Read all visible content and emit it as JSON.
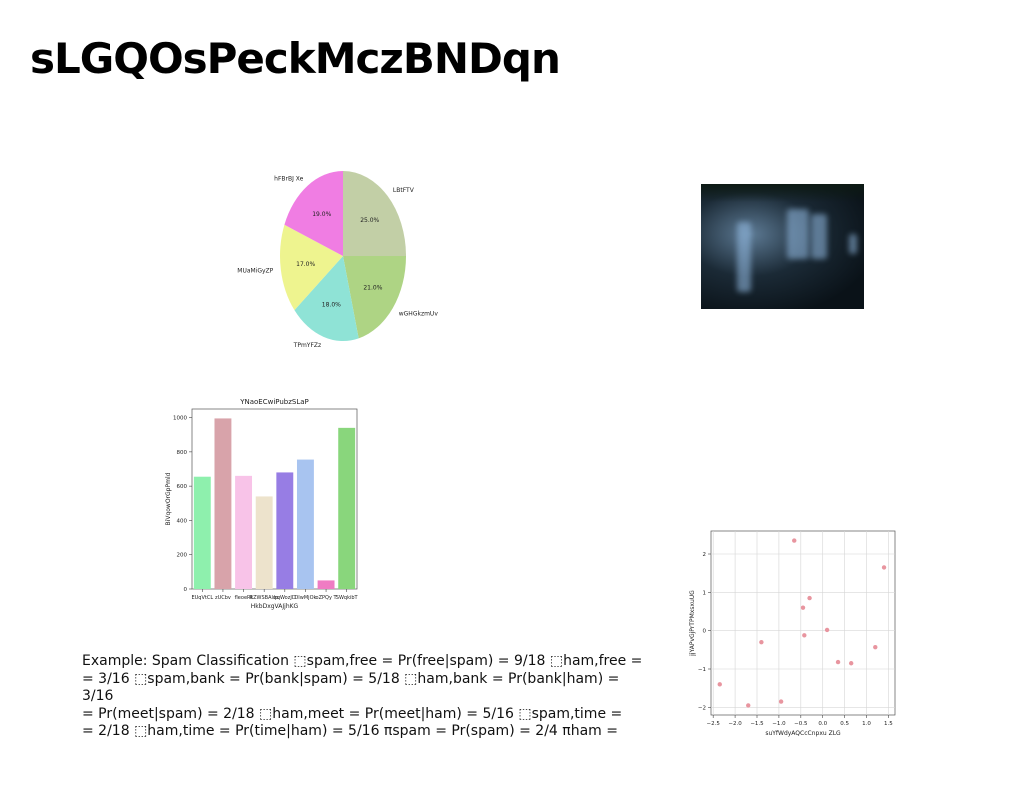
{
  "slide": {
    "title": "sLGQOsPeckMczBNDqn",
    "body_text": "Example: Spam Classification ⬚spam,free = Pr(free|spam) = 9/18 ⬚ham,free =\n= 3/16 ⬚spam,bank = Pr(bank|spam) = 5/18 ⬚ham,bank = Pr(bank|ham) = 3/16\n= Pr(meet|spam) = 2/18 ⬚ham,meet = Pr(meet|ham) = 5/16 ⬚spam,time =\n= 2/18 ⬚ham,time = Pr(time|ham) = 5/16 πspam = Pr(spam) = 2/4 πham ="
  },
  "chart_data": [
    {
      "type": "pie",
      "title": "",
      "slices": [
        {
          "label": "LBtFTV",
          "value": 25.0,
          "color": "#c2cfa6"
        },
        {
          "label": "wGHGkzmUv",
          "value": 21.0,
          "color": "#aed484"
        },
        {
          "label": "TPmYFZz",
          "value": 18.0,
          "color": "#8fe3d6"
        },
        {
          "label": "MUaMiGyZP",
          "value": 17.0,
          "color": "#eef48f"
        },
        {
          "label": "hFBrBJ Xe",
          "value": 19.0,
          "color": "#f07de3"
        }
      ]
    },
    {
      "type": "bar",
      "title": "YNaoECwiPubzSLaP",
      "xlabel": "HkbDxgVAJjhKG",
      "ylabel": "BiVqowOrGpPmld",
      "categories": [
        "EUqVtCL",
        "zUCbv",
        "fleoeRt",
        "RZWSBAlqs",
        "kqWozJD",
        "DIwMjOk",
        "oZPQy T",
        "SWqkibT"
      ],
      "values": [
        655,
        995,
        660,
        540,
        680,
        755,
        50,
        940
      ],
      "colors": [
        "#8ef0ad",
        "#d8a3aa",
        "#f8c3e8",
        "#ede3cc",
        "#977de4",
        "#a8c4f0",
        "#ef7cc3",
        "#89d67c"
      ],
      "ylim": [
        0,
        1050
      ],
      "yticks": [
        0,
        200,
        400,
        600,
        800,
        1000
      ]
    },
    {
      "type": "scatter",
      "title": "",
      "xlabel": "suYfWdyAQCcCnpxu ZLG",
      "ylabel": "jjYAPvGjPrTPMxsxuUG",
      "point_color": "#e8959f",
      "xlim": [
        -2.55,
        1.65
      ],
      "ylim": [
        -2.2,
        2.6
      ],
      "xticks": [
        -2.5,
        -2.0,
        -1.5,
        -1.0,
        -0.5,
        0.0,
        0.5,
        1.0,
        1.5
      ],
      "xtick_labels": [
        "−2.5",
        "−2.0",
        "−1.5",
        "−1.0",
        "−0.5",
        "0.0",
        "0.5",
        "1.0",
        "1.5"
      ],
      "yticks": [
        -2,
        -1,
        0,
        1,
        2
      ],
      "ytick_labels": [
        "−2",
        "−1",
        "0",
        "1",
        "2"
      ],
      "points": [
        {
          "x": -2.35,
          "y": -1.4
        },
        {
          "x": -1.7,
          "y": -1.95
        },
        {
          "x": -1.4,
          "y": -0.3
        },
        {
          "x": -0.95,
          "y": -1.85
        },
        {
          "x": -0.65,
          "y": 2.35
        },
        {
          "x": -0.45,
          "y": 0.6
        },
        {
          "x": -0.42,
          "y": -0.12
        },
        {
          "x": -0.3,
          "y": 0.85
        },
        {
          "x": 0.1,
          "y": 0.02
        },
        {
          "x": 0.35,
          "y": -0.82
        },
        {
          "x": 0.65,
          "y": -0.85
        },
        {
          "x": 1.2,
          "y": -0.43
        },
        {
          "x": 1.4,
          "y": 1.65
        }
      ]
    }
  ],
  "image": {
    "icon": "photo-icon"
  }
}
